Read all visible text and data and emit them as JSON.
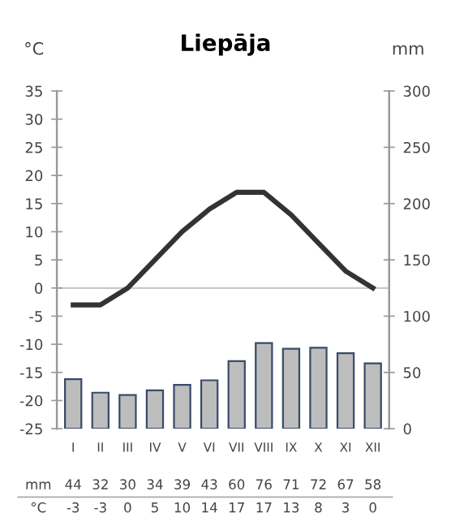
{
  "chart_data": {
    "type": "line",
    "title": "Liepāja",
    "ylabel": "°C",
    "y2label": "mm",
    "categories": [
      "I",
      "II",
      "III",
      "IV",
      "V",
      "VI",
      "VII",
      "VIII",
      "IX",
      "X",
      "XI",
      "XII"
    ],
    "series": [
      {
        "type": "bar",
        "axis": "y2",
        "color": "#bdbdbd",
        "values": [
          44,
          32,
          30,
          34,
          39,
          43,
          60,
          76,
          71,
          72,
          67,
          58
        ]
      },
      {
        "color": "#333333",
        "values": [
          -3,
          -3,
          0,
          5,
          10,
          14,
          17,
          17,
          13,
          8,
          3,
          0
        ]
      }
    ],
    "annotations": [
      "mm",
      "°C"
    ],
    "ylim": [
      -25,
      35
    ],
    "yticks": [
      -25,
      -20,
      -15,
      -10,
      -5,
      0,
      5,
      10,
      15,
      20,
      25,
      30,
      35
    ],
    "y2lim": [
      0,
      300
    ],
    "y2ticks": [
      0,
      50,
      100,
      150,
      200,
      250,
      300
    ],
    "ref_lines": [
      {
        "axis": "y",
        "value": 0,
        "color": "#c8c8c8"
      }
    ],
    "data_labels": true,
    "grid": false,
    "legend": false,
    "marker": "none",
    "line_style": "solid"
  }
}
